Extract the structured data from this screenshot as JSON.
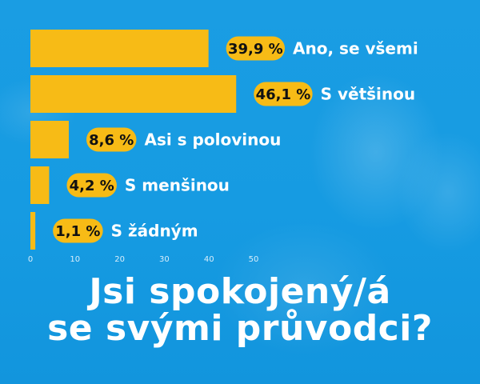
{
  "colors": {
    "background": "#1a9de3",
    "bar": "#f7bb16",
    "label_badge": "#f7bb16",
    "text": "#ffffff",
    "badge_text": "#111111"
  },
  "chart_data": {
    "type": "bar",
    "orientation": "horizontal",
    "categories": [
      "Ano, se všemi",
      "S většinou",
      "Asi s polovinou",
      "S menšinou",
      "S žádným"
    ],
    "values": [
      39.9,
      46.1,
      8.6,
      4.2,
      1.1
    ],
    "value_labels": [
      "39,9 %",
      "46,1 %",
      "8,6 %",
      "4,2 %",
      "1,1 %"
    ],
    "xlim": [
      0,
      50
    ],
    "xticks": [
      "0",
      "10",
      "20",
      "30",
      "40",
      "50"
    ],
    "grid": false
  },
  "title": {
    "line1": "Jsi spokojený/á",
    "line2": "se svými průvodci?"
  }
}
